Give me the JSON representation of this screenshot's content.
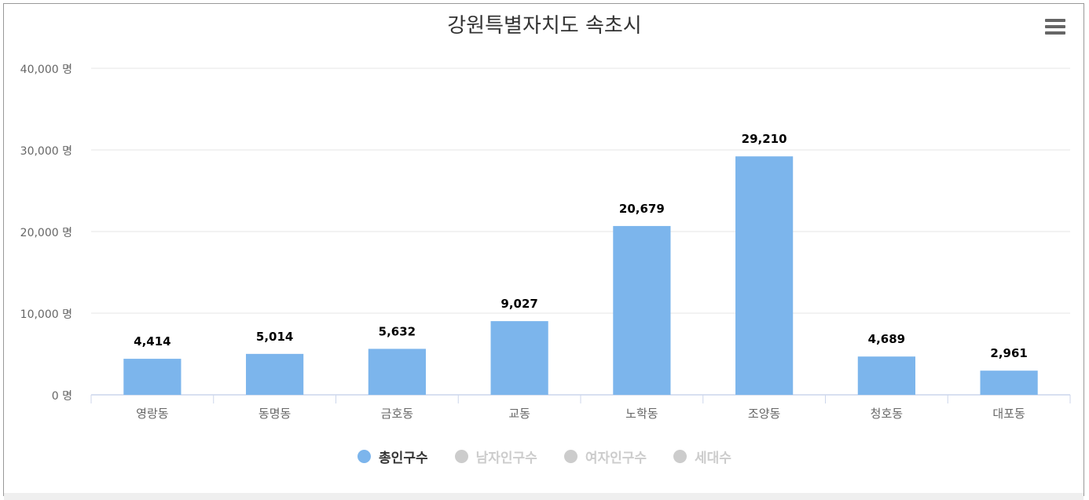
{
  "chart_data": {
    "type": "bar",
    "title": "강원특별자치도 속초시",
    "categories": [
      "영랑동",
      "동명동",
      "금호동",
      "교동",
      "노학동",
      "조양동",
      "청호동",
      "대포동"
    ],
    "series": [
      {
        "name": "총인구수",
        "values": [
          4414,
          5014,
          5632,
          9027,
          20679,
          29210,
          4689,
          2961
        ],
        "visible": true
      }
    ],
    "data_labels": [
      "4,414",
      "5,014",
      "5,632",
      "9,027",
      "20,679",
      "29,210",
      "4,689",
      "2,961"
    ],
    "ylim": [
      0,
      40000
    ],
    "yticks": [
      0,
      10000,
      20000,
      30000,
      40000
    ],
    "ytick_labels": [
      "0 명",
      "10,000 명",
      "20,000 명",
      "30,000 명",
      "40,000 명"
    ],
    "xlabel": "",
    "ylabel": "",
    "grid": true,
    "legend_position": "bottom-center",
    "bar_color": "#7cb5ec"
  },
  "legend": {
    "items": [
      {
        "label": "총인구수",
        "active": true
      },
      {
        "label": "남자인구수",
        "active": false
      },
      {
        "label": "여자인구수",
        "active": false
      },
      {
        "label": "세대수",
        "active": false
      }
    ]
  },
  "toolbar": {
    "menu_icon": "hamburger-menu-icon"
  }
}
